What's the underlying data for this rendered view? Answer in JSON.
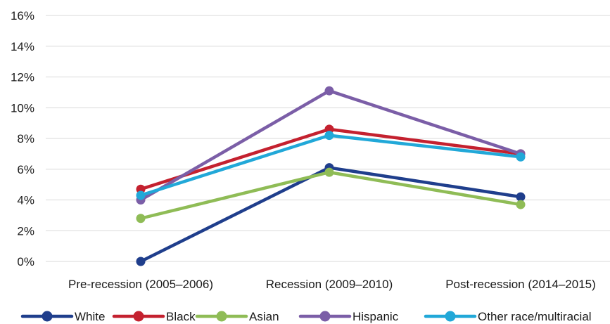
{
  "chart_data": {
    "type": "line",
    "categories": [
      "Pre-recession (2005–2006)",
      "Recession (2009–2010)",
      "Post-recession (2014–2015)"
    ],
    "y_ticks": [
      "0%",
      "2%",
      "4%",
      "6%",
      "8%",
      "10%",
      "12%",
      "14%",
      "16%"
    ],
    "ylim": [
      0,
      16
    ],
    "y_unit": "%",
    "grid": true,
    "legend_position": "bottom",
    "series": [
      {
        "name": "White",
        "color": "#1f3e8c",
        "values": [
          0.0,
          6.1,
          4.2
        ]
      },
      {
        "name": "Black",
        "color": "#c4212f",
        "values": [
          4.7,
          8.6,
          7.0
        ]
      },
      {
        "name": "Asian",
        "color": "#8fbc56",
        "values": [
          2.8,
          5.8,
          3.7
        ]
      },
      {
        "name": "Hispanic",
        "color": "#7b5ea7",
        "values": [
          4.0,
          11.1,
          7.0
        ]
      },
      {
        "name": "Other race/multiracial",
        "color": "#21a8d8",
        "values": [
          4.3,
          8.2,
          6.8
        ]
      }
    ]
  }
}
